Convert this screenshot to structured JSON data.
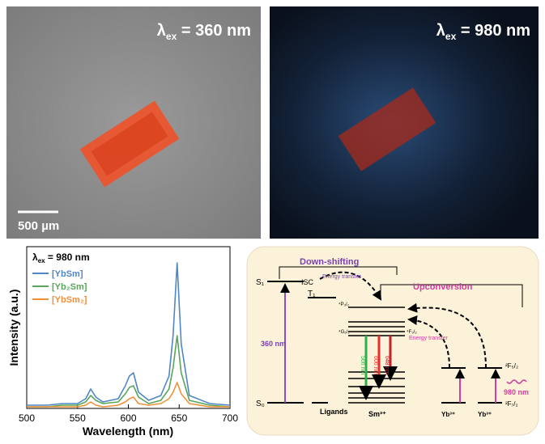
{
  "photos": [
    {
      "label": {
        "symbol": "λ",
        "subscript": "ex",
        "rest": " = 360 nm"
      },
      "scale_bar": "500 µm"
    },
    {
      "label": {
        "symbol": "λ",
        "subscript": "ex",
        "rest": " = 980 nm"
      }
    }
  ],
  "chart_data": {
    "type": "line",
    "annotation": {
      "symbol": "λ",
      "subscript": "ex",
      "rest": " = 980 nm"
    },
    "xlabel": "Wavelength (nm)",
    "ylabel": "Intensity (a.u.)",
    "x": [
      500,
      520,
      535,
      550,
      558,
      563,
      568,
      575,
      590,
      597,
      601,
      605,
      610,
      620,
      632,
      640,
      644,
      648,
      652,
      660,
      680,
      700
    ],
    "series": [
      {
        "name": "[YbSm]",
        "color": "#4f86c6",
        "values": [
          0.02,
          0.02,
          0.03,
          0.03,
          0.06,
          0.12,
          0.07,
          0.04,
          0.06,
          0.14,
          0.2,
          0.22,
          0.1,
          0.05,
          0.08,
          0.2,
          0.45,
          0.9,
          0.4,
          0.08,
          0.03,
          0.02
        ]
      },
      {
        "name": "[Yb₂Sm]",
        "color": "#5aa55a",
        "values": [
          0.01,
          0.01,
          0.02,
          0.02,
          0.04,
          0.08,
          0.05,
          0.03,
          0.04,
          0.09,
          0.13,
          0.14,
          0.07,
          0.03,
          0.05,
          0.12,
          0.25,
          0.45,
          0.22,
          0.05,
          0.02,
          0.01
        ]
      },
      {
        "name": "[YbSm₂]",
        "color": "#f0903a",
        "values": [
          0.01,
          0.01,
          0.01,
          0.01,
          0.02,
          0.04,
          0.02,
          0.01,
          0.02,
          0.04,
          0.06,
          0.07,
          0.03,
          0.02,
          0.03,
          0.06,
          0.1,
          0.16,
          0.09,
          0.03,
          0.01,
          0.01
        ]
      }
    ],
    "xlim": [
      500,
      700
    ],
    "xticks": [
      500,
      550,
      600,
      650,
      700
    ],
    "ylim": [
      0,
      1
    ]
  },
  "diagram": {
    "downshifting": "Down-shifting",
    "upconversion": "Upconversion",
    "energy_transfer_1": "Energy transfer",
    "energy_transfer_2": "Energy transfer",
    "isc": "ISC",
    "s1": "S₁",
    "t1": "T₁",
    "s0": "S₀",
    "excitation": "360 nm",
    "ligands": "Ligands",
    "sm": "Sm³⁺",
    "yb1": "Yb³⁺",
    "yb2": "Yb³⁺",
    "f52": "²F₅/₂",
    "f72": "²F₇/₂",
    "ir": "980 nm",
    "em1": "566 nm",
    "em2": "606 nm",
    "em3": "648 nm",
    "g52": "⁴G₅/₂",
    "f32": "⁴F₃/₂",
    "p32": "⁴P₃/₂"
  }
}
